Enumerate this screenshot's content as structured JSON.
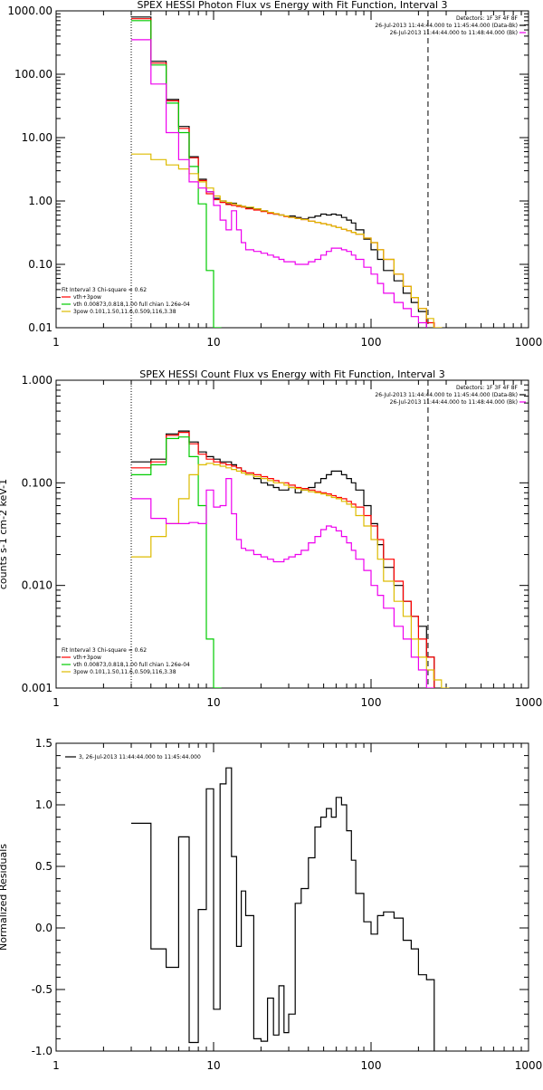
{
  "chart_data": [
    {
      "type": "line",
      "title": "SPEX HESSI Photon Flux vs Energy with Fit Function, Interval 3",
      "xscale": "log",
      "yscale": "log",
      "xlim": [
        1,
        1000
      ],
      "ylim": [
        0.01,
        1000
      ],
      "xticks": [
        1,
        10,
        100,
        1000
      ],
      "xticklabels": [
        "1",
        "10",
        "100",
        "1000"
      ],
      "yticks": [
        0.01,
        0.1,
        1,
        10,
        100,
        1000
      ],
      "yticklabels": [
        "0.01",
        "0.10",
        "1.00",
        "10.00",
        "100.00",
        "1000.00"
      ],
      "legend_top_right": [
        "Detectors: 1F 3F 4F 8F",
        "26-Jul-2013 11:44:44.000 to 11:45:44.000 (Data-Bk)",
        "26-Jul-2013 11:44:44.000 to 11:48:44.000 (Bk)"
      ],
      "legend_bottom_left": {
        "title": "Fit Interval 3   Chi-square = 0.62",
        "entries": [
          "vth+3pow",
          "vth 0.00873,0.818,1.00  full chian 1.26e-04",
          "3pow 0.101,1.50,11.6,0.509,116,3.38"
        ]
      },
      "vlines": [
        3.0,
        230
      ],
      "series": [
        {
          "name": "Data-Bk",
          "color": "#000000",
          "x": [
            3.0,
            4,
            5,
            6,
            7,
            8,
            9,
            10,
            11,
            12,
            13,
            14,
            15,
            16,
            18,
            20,
            22,
            24,
            26,
            28,
            30,
            33,
            36,
            40,
            44,
            48,
            52,
            56,
            60,
            65,
            70,
            75,
            80,
            90,
            100,
            110,
            120,
            140,
            160,
            180,
            200,
            225
          ],
          "y": [
            800,
            160,
            40,
            15,
            5.0,
            2.2,
            1.4,
            1.1,
            1.0,
            0.9,
            0.92,
            0.85,
            0.82,
            0.78,
            0.75,
            0.7,
            0.65,
            0.62,
            0.6,
            0.58,
            0.58,
            0.55,
            0.52,
            0.55,
            0.58,
            0.62,
            0.6,
            0.62,
            0.6,
            0.55,
            0.5,
            0.45,
            0.35,
            0.25,
            0.17,
            0.12,
            0.08,
            0.055,
            0.035,
            0.025,
            0.018,
            0.008
          ]
        },
        {
          "name": "vth+3pow",
          "color": "#ff0000",
          "x": [
            3.0,
            4,
            5,
            6,
            7,
            8,
            9,
            10,
            11,
            12,
            13,
            14,
            15,
            16,
            18,
            20,
            22,
            24,
            26,
            28,
            30,
            33,
            36,
            40,
            44,
            48,
            52,
            56,
            60,
            65,
            70,
            75,
            80,
            90,
            100,
            110,
            120,
            140,
            160,
            180,
            200,
            225
          ],
          "y": [
            750,
            150,
            38,
            14,
            4.8,
            2.1,
            1.3,
            1.05,
            0.95,
            0.88,
            0.85,
            0.82,
            0.8,
            0.75,
            0.72,
            0.68,
            0.64,
            0.62,
            0.6,
            0.57,
            0.55,
            0.53,
            0.51,
            0.48,
            0.46,
            0.44,
            0.42,
            0.4,
            0.38,
            0.36,
            0.34,
            0.32,
            0.3,
            0.26,
            0.22,
            0.17,
            0.12,
            0.07,
            0.045,
            0.03,
            0.02,
            0.012
          ]
        },
        {
          "name": "vth",
          "color": "#00cc00",
          "x": [
            3.0,
            4,
            5,
            6,
            7,
            8,
            9,
            10
          ],
          "y": [
            700,
            140,
            35,
            12,
            3.5,
            0.9,
            0.08,
            0.01
          ]
        },
        {
          "name": "3pow",
          "color": "#ddbb00",
          "x": [
            3.0,
            4,
            5,
            6,
            7,
            8,
            9,
            10,
            11,
            12,
            13,
            14,
            15,
            16,
            18,
            20,
            22,
            24,
            26,
            28,
            30,
            33,
            36,
            40,
            44,
            48,
            52,
            56,
            60,
            65,
            70,
            75,
            80,
            90,
            100,
            110,
            120,
            140,
            160,
            180,
            200,
            225,
            250,
            280
          ],
          "y": [
            5.5,
            4.5,
            3.7,
            3.2,
            2.7,
            2.0,
            1.6,
            1.2,
            1.0,
            0.95,
            0.9,
            0.85,
            0.82,
            0.8,
            0.75,
            0.7,
            0.66,
            0.63,
            0.6,
            0.58,
            0.55,
            0.53,
            0.51,
            0.48,
            0.46,
            0.44,
            0.42,
            0.4,
            0.38,
            0.36,
            0.34,
            0.32,
            0.3,
            0.26,
            0.22,
            0.17,
            0.12,
            0.07,
            0.045,
            0.03,
            0.02,
            0.014,
            0.01,
            0.007
          ]
        },
        {
          "name": "Bk",
          "color": "#ee00ee",
          "x": [
            3.0,
            4,
            5,
            6,
            7,
            8,
            9,
            10,
            11,
            12,
            13,
            14,
            15,
            16,
            18,
            20,
            22,
            24,
            26,
            28,
            30,
            33,
            36,
            40,
            44,
            48,
            52,
            56,
            60,
            65,
            70,
            75,
            80,
            90,
            100,
            110,
            120,
            140,
            160,
            180,
            200,
            225
          ],
          "y": [
            350,
            70,
            12,
            4.5,
            2.0,
            1.6,
            1.4,
            0.85,
            0.5,
            0.35,
            0.7,
            0.35,
            0.22,
            0.17,
            0.16,
            0.15,
            0.14,
            0.13,
            0.12,
            0.11,
            0.11,
            0.1,
            0.1,
            0.11,
            0.12,
            0.14,
            0.16,
            0.18,
            0.18,
            0.17,
            0.16,
            0.14,
            0.12,
            0.09,
            0.07,
            0.05,
            0.035,
            0.025,
            0.02,
            0.015,
            0.012,
            0.008
          ]
        }
      ]
    },
    {
      "type": "line",
      "title": "SPEX HESSI Count Flux vs Energy with Fit Function, Interval 3",
      "ylabel": "counts s-1 cm-2 keV-1",
      "xscale": "log",
      "yscale": "log",
      "xlim": [
        1,
        1000
      ],
      "ylim": [
        0.001,
        1
      ],
      "xticks": [
        1,
        10,
        100,
        1000
      ],
      "xticklabels": [
        "1",
        "10",
        "100",
        "1000"
      ],
      "yticks": [
        0.001,
        0.01,
        0.1,
        1
      ],
      "yticklabels": [
        "0.001",
        "0.010",
        "0.100",
        "1.000"
      ],
      "legend_top_right": [
        "Detectors: 1F 3F 4F 8F",
        "26-Jul-2013 11:44:44.000 to 11:45:44.000 (Data-Bk)",
        "26-Jul-2013 11:44:44.000 to 11:48:44.000 (Bk)"
      ],
      "legend_bottom_left": {
        "title": "Fit Interval 3   Chi-square = 0.62",
        "entries": [
          "vth+3pow",
          "vth 0.00873,0.818,1.00  full chian 1.26e-04",
          "3pow 0.101,1.50,11.6,0.509,116,3.38"
        ]
      },
      "vlines": [
        3.0,
        230
      ],
      "series": [
        {
          "name": "Data-Bk",
          "color": "#000000",
          "x": [
            3.0,
            4,
            5,
            6,
            7,
            8,
            9,
            10,
            11,
            12,
            13,
            14,
            15,
            16,
            18,
            20,
            22,
            24,
            26,
            28,
            30,
            33,
            36,
            40,
            44,
            48,
            52,
            56,
            60,
            65,
            70,
            75,
            80,
            90,
            100,
            110,
            120,
            140,
            160,
            180,
            200,
            225
          ],
          "y": [
            0.16,
            0.17,
            0.3,
            0.32,
            0.25,
            0.2,
            0.18,
            0.17,
            0.16,
            0.16,
            0.15,
            0.14,
            0.13,
            0.12,
            0.11,
            0.1,
            0.095,
            0.09,
            0.085,
            0.085,
            0.09,
            0.08,
            0.085,
            0.09,
            0.1,
            0.11,
            0.12,
            0.13,
            0.13,
            0.12,
            0.11,
            0.1,
            0.085,
            0.06,
            0.04,
            0.025,
            0.015,
            0.01,
            0.007,
            0.005,
            0.004,
            0.002
          ]
        },
        {
          "name": "vth+3pow",
          "color": "#ff0000",
          "x": [
            3.0,
            4,
            5,
            6,
            7,
            8,
            9,
            10,
            11,
            12,
            13,
            14,
            15,
            16,
            18,
            20,
            22,
            24,
            26,
            28,
            30,
            33,
            36,
            40,
            44,
            48,
            52,
            56,
            60,
            65,
            70,
            75,
            80,
            90,
            100,
            110,
            120,
            140,
            160,
            180,
            200,
            225
          ],
          "y": [
            0.14,
            0.16,
            0.29,
            0.31,
            0.24,
            0.19,
            0.17,
            0.16,
            0.155,
            0.15,
            0.145,
            0.14,
            0.13,
            0.125,
            0.12,
            0.115,
            0.11,
            0.105,
            0.1,
            0.1,
            0.095,
            0.09,
            0.088,
            0.085,
            0.082,
            0.08,
            0.078,
            0.075,
            0.072,
            0.07,
            0.066,
            0.062,
            0.058,
            0.048,
            0.038,
            0.028,
            0.018,
            0.011,
            0.007,
            0.005,
            0.003,
            0.002
          ]
        },
        {
          "name": "vth",
          "color": "#00cc00",
          "x": [
            3.0,
            4,
            5,
            6,
            7,
            8,
            9,
            10
          ],
          "y": [
            0.12,
            0.15,
            0.27,
            0.28,
            0.18,
            0.06,
            0.003,
            0.001
          ]
        },
        {
          "name": "3pow",
          "color": "#ddbb00",
          "x": [
            3.0,
            4,
            5,
            6,
            7,
            8,
            9,
            10,
            11,
            12,
            13,
            14,
            15,
            16,
            18,
            20,
            22,
            24,
            26,
            28,
            30,
            33,
            36,
            40,
            44,
            48,
            52,
            56,
            60,
            65,
            70,
            75,
            80,
            90,
            100,
            110,
            120,
            140,
            160,
            180,
            200,
            225,
            250,
            280
          ],
          "y": [
            0.019,
            0.03,
            0.04,
            0.07,
            0.12,
            0.15,
            0.155,
            0.15,
            0.145,
            0.14,
            0.135,
            0.13,
            0.125,
            0.12,
            0.115,
            0.11,
            0.105,
            0.1,
            0.1,
            0.095,
            0.09,
            0.088,
            0.085,
            0.082,
            0.08,
            0.078,
            0.075,
            0.072,
            0.07,
            0.066,
            0.062,
            0.058,
            0.048,
            0.038,
            0.028,
            0.018,
            0.011,
            0.007,
            0.005,
            0.003,
            0.002,
            0.0015,
            0.0012,
            0.001
          ]
        },
        {
          "name": "Bk",
          "color": "#ee00ee",
          "x": [
            3.0,
            4,
            5,
            6,
            7,
            8,
            9,
            10,
            11,
            12,
            13,
            14,
            15,
            16,
            18,
            20,
            22,
            24,
            26,
            28,
            30,
            33,
            36,
            40,
            44,
            48,
            52,
            56,
            60,
            65,
            70,
            75,
            80,
            90,
            100,
            110,
            120,
            140,
            160,
            180,
            200,
            225
          ],
          "y": [
            0.07,
            0.045,
            0.04,
            0.04,
            0.041,
            0.04,
            0.085,
            0.058,
            0.06,
            0.11,
            0.05,
            0.028,
            0.023,
            0.022,
            0.02,
            0.019,
            0.018,
            0.017,
            0.017,
            0.018,
            0.019,
            0.02,
            0.022,
            0.026,
            0.03,
            0.035,
            0.038,
            0.037,
            0.034,
            0.03,
            0.026,
            0.022,
            0.018,
            0.014,
            0.01,
            0.008,
            0.006,
            0.004,
            0.003,
            0.002,
            0.0015,
            0.001
          ]
        }
      ]
    },
    {
      "type": "line",
      "ylabel": "Normalized Residuals",
      "xscale": "log",
      "yscale": "linear",
      "xlim": [
        1,
        1000
      ],
      "ylim": [
        -1.0,
        1.5
      ],
      "xticks": [
        1,
        10,
        100,
        1000
      ],
      "xticklabels": [
        "1",
        "10",
        "100",
        "1000"
      ],
      "yticks": [
        -1.0,
        -0.5,
        0.0,
        0.5,
        1.0,
        1.5
      ],
      "yticklabels": [
        "-1.0",
        "-0.5",
        "0.0",
        "0.5",
        "1.0",
        "1.5"
      ],
      "legend": "3, 26-Jul-2013 11:44:44.000 to 11:45:44.000",
      "series": [
        {
          "name": "Residuals",
          "color": "#000000",
          "x": [
            3.0,
            4,
            5,
            6,
            7,
            8,
            9,
            10,
            11,
            12,
            13,
            14,
            15,
            16,
            18,
            20,
            22,
            24,
            26,
            28,
            30,
            33,
            36,
            40,
            44,
            48,
            52,
            56,
            60,
            65,
            70,
            75,
            80,
            90,
            100,
            110,
            120,
            140,
            160,
            180,
            200,
            225
          ],
          "y": [
            0.85,
            -0.17,
            -0.32,
            0.74,
            -0.93,
            0.15,
            1.13,
            -0.66,
            1.17,
            1.3,
            0.58,
            -0.15,
            0.3,
            0.1,
            -0.9,
            -0.92,
            -0.57,
            -0.87,
            -0.47,
            -0.85,
            -0.7,
            0.2,
            0.32,
            0.57,
            0.82,
            0.9,
            0.97,
            0.9,
            1.06,
            1.0,
            0.79,
            0.55,
            0.28,
            0.05,
            -0.05,
            0.1,
            0.13,
            0.08,
            -0.1,
            -0.17,
            -0.38,
            -0.42
          ]
        }
      ]
    }
  ]
}
